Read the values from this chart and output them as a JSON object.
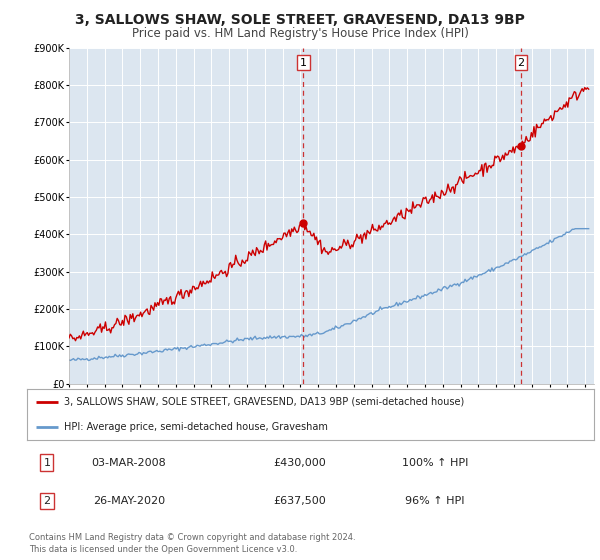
{
  "title": "3, SALLOWS SHAW, SOLE STREET, GRAVESEND, DA13 9BP",
  "subtitle": "Price paid vs. HM Land Registry's House Price Index (HPI)",
  "title_fontsize": 10,
  "subtitle_fontsize": 8.5,
  "bg_color": "#ffffff",
  "plot_bg_color": "#dce6f0",
  "ylim": [
    0,
    900000
  ],
  "xlim_start": 1995.0,
  "xlim_end": 2024.5,
  "yticks": [
    0,
    100000,
    200000,
    300000,
    400000,
    500000,
    600000,
    700000,
    800000,
    900000
  ],
  "ytick_labels": [
    "£0",
    "£100K",
    "£200K",
    "£300K",
    "£400K",
    "£500K",
    "£600K",
    "£700K",
    "£800K",
    "£900K"
  ],
  "xticks": [
    1995,
    1996,
    1997,
    1998,
    1999,
    2000,
    2001,
    2002,
    2003,
    2004,
    2005,
    2006,
    2007,
    2008,
    2009,
    2010,
    2011,
    2012,
    2013,
    2014,
    2015,
    2016,
    2017,
    2018,
    2019,
    2020,
    2021,
    2022,
    2023,
    2024
  ],
  "sale1_x": 2008.17,
  "sale1_y": 430000,
  "sale2_x": 2020.4,
  "sale2_y": 637500,
  "red_color": "#cc0000",
  "blue_color": "#6699cc",
  "marker_color": "#cc0000",
  "vline_color": "#cc3333",
  "legend_label_red": "3, SALLOWS SHAW, SOLE STREET, GRAVESEND, DA13 9BP (semi-detached house)",
  "legend_label_blue": "HPI: Average price, semi-detached house, Gravesham",
  "footnote": "Contains HM Land Registry data © Crown copyright and database right 2024.\nThis data is licensed under the Open Government Licence v3.0."
}
